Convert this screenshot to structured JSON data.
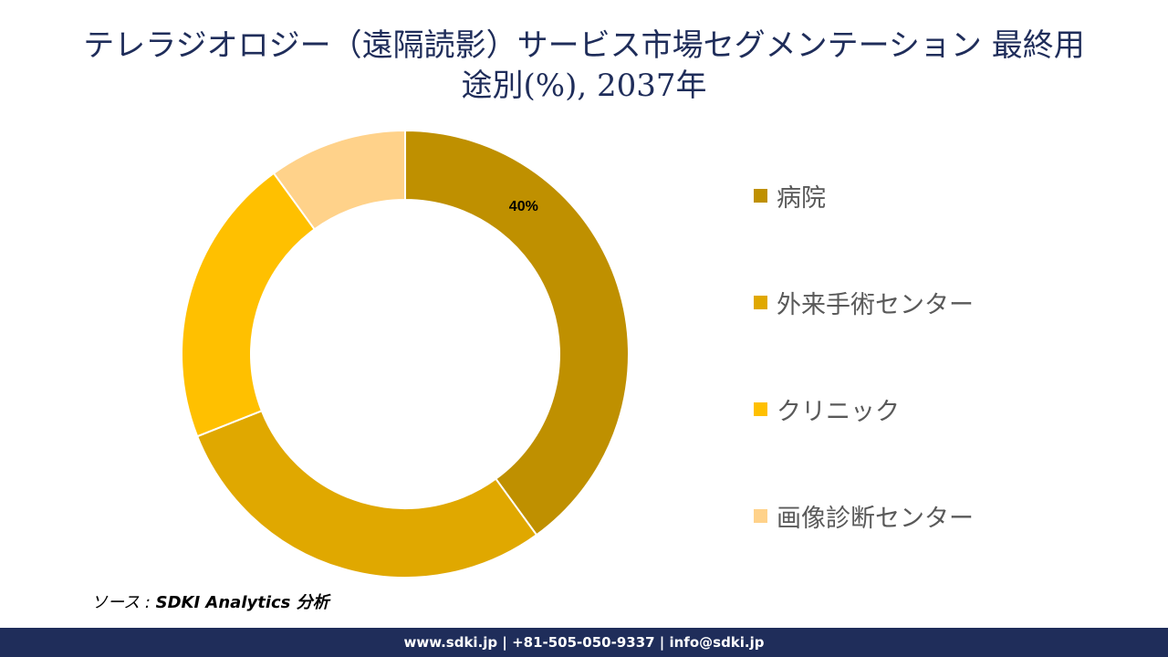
{
  "title_line1": "テレラジオロジー（遠隔読影）サービス市場セグメンテーション 最終用",
  "title_line2": "途別(%), 2037年",
  "chart_data": {
    "type": "pie",
    "donut": true,
    "categories": [
      "病院",
      "外来手術センター",
      "クリニック",
      "画像診断センター"
    ],
    "values": [
      40,
      29,
      21,
      10
    ],
    "data_labels": [
      "40%",
      "",
      "",
      ""
    ],
    "colors": [
      "#bf9000",
      "#e0a800",
      "#ffc000",
      "#ffd28a"
    ],
    "legend_position": "right",
    "start_angle": "top",
    "direction": "clockwise"
  },
  "source": {
    "prefix": "ソース : ",
    "text": "SDKI Analytics 分析"
  },
  "footer": "www.sdki.jp | +81-505-050-9337 | info@sdki.jp"
}
